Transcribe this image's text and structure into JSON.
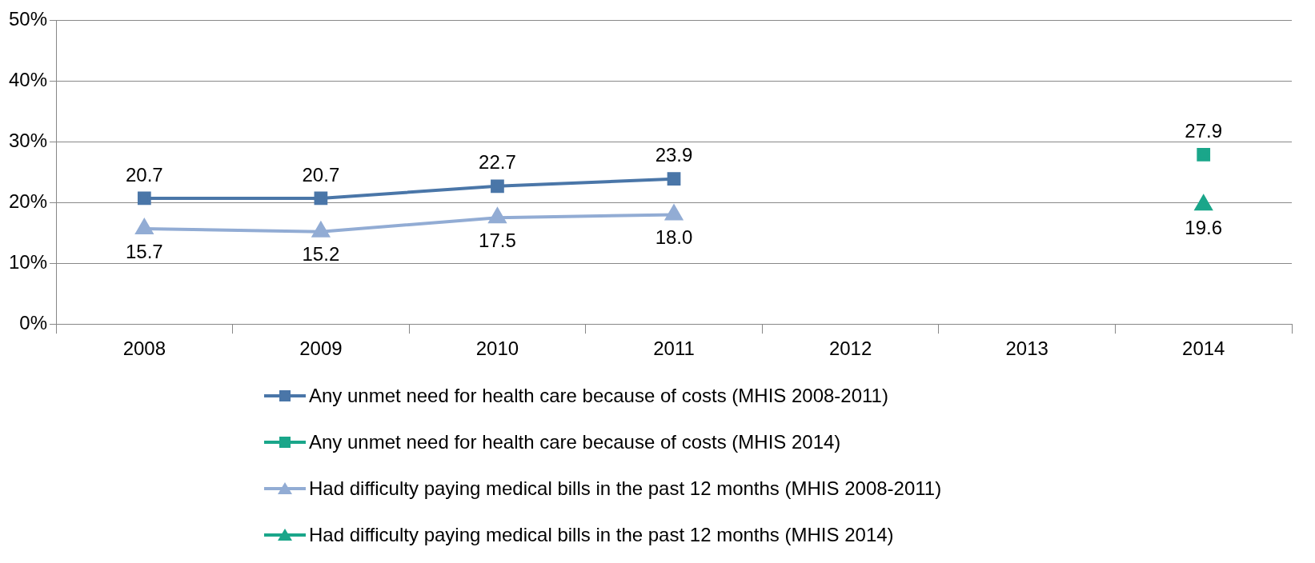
{
  "chart_data": {
    "type": "line",
    "categories": [
      "2008",
      "2009",
      "2010",
      "2011",
      "2012",
      "2013",
      "2014"
    ],
    "ylim": [
      0,
      50
    ],
    "yticks": [
      {
        "value": 0,
        "label": "0%"
      },
      {
        "value": 10,
        "label": "10%"
      },
      {
        "value": 20,
        "label": "20%"
      },
      {
        "value": 30,
        "label": "30%"
      },
      {
        "value": 40,
        "label": "40%"
      },
      {
        "value": 50,
        "label": "50%"
      }
    ],
    "grid": "y",
    "legend": "bottom",
    "line_style": "solid",
    "series": [
      {
        "name": "Any unmet need for health care because of costs (MHIS 2008-2011)",
        "color": "#4a76a8",
        "marker": "square",
        "values": [
          20.7,
          20.7,
          22.7,
          23.9,
          null,
          null,
          null
        ],
        "value_labels": [
          "20.7",
          "20.7",
          "22.7",
          "23.9",
          null,
          null,
          null
        ]
      },
      {
        "name": "Any unmet need for health care because of costs (MHIS 2014)",
        "color": "#1aa68a",
        "marker": "square",
        "values": [
          null,
          null,
          null,
          null,
          null,
          null,
          27.9
        ],
        "value_labels": [
          null,
          null,
          null,
          null,
          null,
          null,
          "27.9"
        ]
      },
      {
        "name": "Had difficulty paying medical bills in the past 12 months (MHIS 2008-2011)",
        "color": "#92acd4",
        "marker": "triangle",
        "values": [
          15.7,
          15.2,
          17.5,
          18.0,
          null,
          null,
          null
        ],
        "value_labels": [
          "15.7",
          "15.2",
          "17.5",
          "18.0",
          null,
          null,
          null
        ]
      },
      {
        "name": "Had difficulty paying medical bills in the past 12 months (MHIS 2014)",
        "color": "#1aa68a",
        "marker": "triangle",
        "values": [
          null,
          null,
          null,
          null,
          null,
          null,
          19.6
        ],
        "value_labels": [
          null,
          null,
          null,
          null,
          null,
          null,
          "19.6"
        ]
      }
    ]
  }
}
